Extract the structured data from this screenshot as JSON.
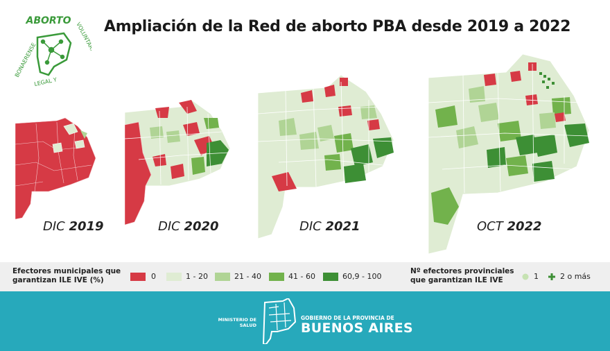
{
  "title": "Ampliación de la Red de aborto PBA desde 2019 a 2022",
  "logo": {
    "top_word": "ABORTO",
    "ring_text": "BONAERENSE · VOLUNTARIO · LEGAL Y",
    "ring_left": "BONAERENSE",
    "ring_right": "VOLUNTARIO",
    "ring_bottom": "LEGAL Y"
  },
  "maps": [
    {
      "prefix": "DIC",
      "year": "2019"
    },
    {
      "prefix": "DIC",
      "year": "2020"
    },
    {
      "prefix": "DIC",
      "year": "2021"
    },
    {
      "prefix": "OCT",
      "year": "2022"
    }
  ],
  "legend": {
    "municipal_title_line1": "Efectores municipales que",
    "municipal_title_line2": "garantizan ILE IVE (%)",
    "ranges": [
      {
        "label": "0",
        "color": "#d63a45"
      },
      {
        "label": "1 - 20",
        "color": "#dfecd3"
      },
      {
        "label": "21 - 40",
        "color": "#b0d495"
      },
      {
        "label": "41 - 60",
        "color": "#72b24c"
      },
      {
        "label": "60,9 - 100",
        "color": "#3d8f35"
      }
    ],
    "provincial_title_line1": "Nº efectores provinciales",
    "provincial_title_line2": "que garantizan ILE IVE",
    "provincial_one": "1",
    "provincial_many": "2 o más"
  },
  "footer": {
    "ministry_line1": "MINISTERIO DE",
    "ministry_line2": "SALUD",
    "gov_line": "GOBIERNO DE LA PROVINCIA DE",
    "province": "BUENOS AIRES",
    "bg_color": "#27a9bb"
  }
}
